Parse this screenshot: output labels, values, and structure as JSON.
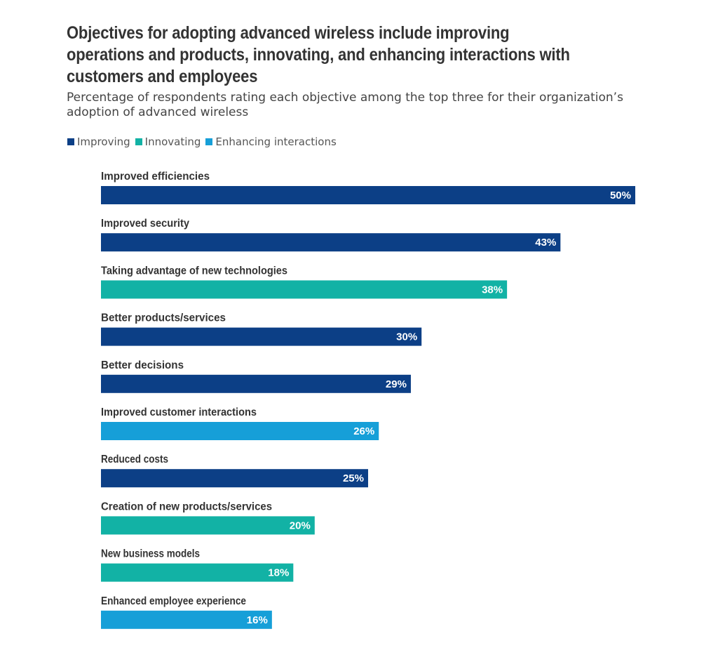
{
  "chart_data": {
    "type": "bar",
    "orientation": "horizontal",
    "title": "Objectives for adopting advanced wireless include improving operations and products, innovating, and enhancing interactions with customers and employees",
    "subtitle": "Percentage of respondents rating each objective among the top three for their organization’s adoption of advanced wireless",
    "xlabel": "",
    "ylabel": "",
    "xlim": [
      0,
      50
    ],
    "grid": false,
    "legend_position": "top-left",
    "legend": [
      {
        "name": "Improving",
        "color": "#0c3f86"
      },
      {
        "name": "Innovating",
        "color": "#12b2a5"
      },
      {
        "name": "Enhancing interactions",
        "color": "#169fd8"
      }
    ],
    "categories": [
      "Improved efficiencies",
      "Improved security",
      "Taking advantage of new technologies",
      "Better products/services",
      "Better decisions",
      "Improved customer interactions",
      "Reduced costs",
      "Creation of new products/services",
      "New business models",
      "Enhanced employee experience"
    ],
    "values": [
      50,
      43,
      38,
      30,
      29,
      26,
      25,
      20,
      18,
      16
    ],
    "value_labels": [
      "50%",
      "43%",
      "38%",
      "30%",
      "29%",
      "26%",
      "25%",
      "20%",
      "18%",
      "16%"
    ],
    "groups": [
      "Improving",
      "Improving",
      "Innovating",
      "Improving",
      "Improving",
      "Enhancing interactions",
      "Improving",
      "Innovating",
      "Innovating",
      "Enhancing interactions"
    ]
  }
}
